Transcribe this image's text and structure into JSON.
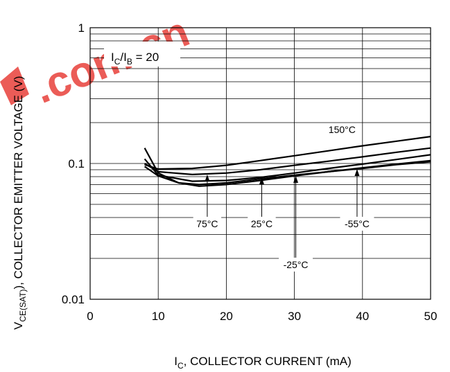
{
  "watermark": {
    "text": ".com.cn",
    "color": "#e8403a"
  },
  "chart_data": {
    "type": "line",
    "title": "",
    "xlabel_main": "I",
    "xlabel_sub": "C",
    "xlabel_rest": ", COLLECTOR CURRENT (mA)",
    "ylabel_main": "V",
    "ylabel_sub": "CE(SAT)",
    "ylabel_rest": "), COLLECTOR EMITTER VOLTAGE (V)",
    "ylabel_pre": "",
    "xlim": [
      0,
      50
    ],
    "ylim": [
      0.01,
      1
    ],
    "yscale": "log",
    "x_ticks": [
      "0",
      "10",
      "20",
      "30",
      "40",
      "50"
    ],
    "y_ticks": [
      "0.01",
      "0.1",
      "1"
    ],
    "grid": true,
    "condition": {
      "a": "I",
      "a_sub": "C",
      "slash": "/I",
      "b_sub": "B",
      "rest": " = 20"
    },
    "series": [
      {
        "name": "150°C",
        "x": [
          8,
          10,
          15,
          20,
          25,
          30,
          35,
          40,
          45,
          50
        ],
        "y": [
          0.098,
          0.091,
          0.092,
          0.097,
          0.105,
          0.114,
          0.124,
          0.135,
          0.146,
          0.158
        ]
      },
      {
        "name": "75°C",
        "x": [
          8,
          10,
          15,
          20,
          25,
          30,
          35,
          40,
          45,
          50
        ],
        "y": [
          0.1,
          0.087,
          0.083,
          0.085,
          0.09,
          0.097,
          0.104,
          0.112,
          0.121,
          0.13
        ]
      },
      {
        "name": "25°C",
        "x": [
          8,
          10,
          15,
          20,
          25,
          30,
          35,
          40,
          45,
          50
        ],
        "y": [
          0.108,
          0.082,
          0.074,
          0.075,
          0.079,
          0.085,
          0.092,
          0.099,
          0.107,
          0.116
        ]
      },
      {
        "name": "-25°C",
        "x": [
          8,
          10,
          13,
          16,
          20,
          25,
          30,
          35,
          40,
          45,
          50
        ],
        "y": [
          0.13,
          0.085,
          0.072,
          0.068,
          0.07,
          0.075,
          0.081,
          0.087,
          0.093,
          0.099,
          0.105
        ]
      },
      {
        "name": "-55°C",
        "x": [
          8,
          10,
          13,
          16,
          20,
          25,
          30,
          35,
          40,
          45,
          50
        ],
        "y": [
          0.095,
          0.081,
          0.072,
          0.07,
          0.072,
          0.077,
          0.082,
          0.087,
          0.092,
          0.098,
          0.103
        ]
      }
    ],
    "annotations": [
      {
        "text": "150°C",
        "x": 37,
        "y": 0.168,
        "arrow": false
      },
      {
        "text": "75°C",
        "x": 17.2,
        "y": 0.036,
        "arrow_to": 0.083
      },
      {
        "text": "25°C",
        "x": 25.2,
        "y": 0.036,
        "arrow_to": 0.079
      },
      {
        "text": "-25°C",
        "x": 30.2,
        "y": 0.018,
        "arrow_to": 0.081
      },
      {
        "text": "-55°C",
        "x": 39.2,
        "y": 0.036,
        "arrow_to": 0.091
      }
    ]
  }
}
